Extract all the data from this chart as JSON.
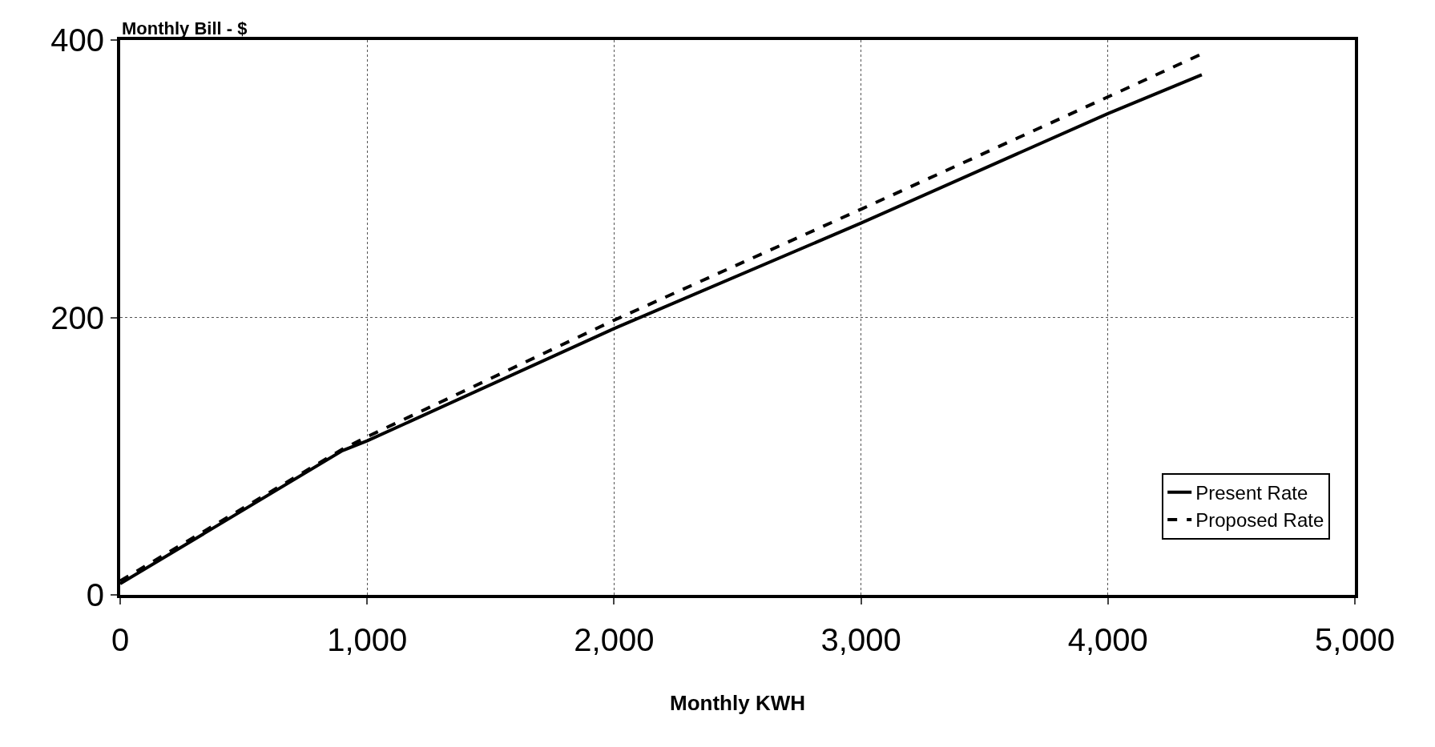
{
  "chart_data": {
    "type": "line",
    "xlabel": "Monthly KWH",
    "ylabel": "Monthly Bill - $",
    "xlim": [
      0,
      5000
    ],
    "xticks": [
      0,
      {
        "value": 1000,
        "label": "1,000"
      },
      {
        "value": 2000,
        "label": "2,000"
      },
      {
        "value": 3000,
        "label": "3,000"
      },
      {
        "value": 4000,
        "label": "4,000"
      },
      {
        "value": 5000,
        "label": "5,000"
      }
    ],
    "ylim": [
      0,
      400
    ],
    "yticks": [
      0,
      200,
      400
    ],
    "grid": true,
    "legend": "bottom right",
    "marker": "none",
    "series": [
      {
        "name": "Present Rate",
        "color": "#000000",
        "line_style": "solid",
        "x": [
          0,
          900,
          1000,
          2000,
          3000,
          4000,
          4380
        ],
        "values": [
          8,
          104,
          111,
          192,
          268,
          347,
          375
        ]
      },
      {
        "name": "Proposed Rate",
        "color": "#000000",
        "line_style": "dashed",
        "x": [
          0,
          900,
          1000,
          2000,
          3000,
          4000,
          4380
        ],
        "values": [
          10,
          105,
          114,
          198,
          278,
          359,
          390
        ]
      }
    ]
  }
}
